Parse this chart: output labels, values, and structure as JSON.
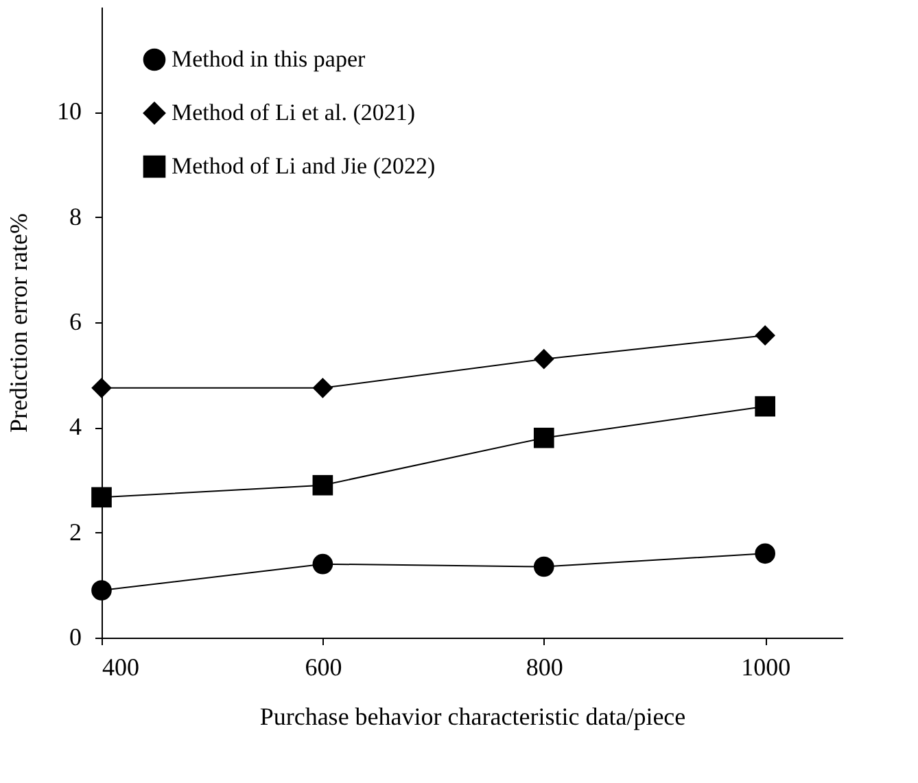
{
  "chart_data": {
    "type": "line",
    "xlabel": "Purchase behavior characteristic data/piece",
    "ylabel": "Prediction error rate%",
    "x": [
      400,
      600,
      800,
      1000
    ],
    "series": [
      {
        "name": "Method in this paper",
        "color": "#000000",
        "marker": "circle",
        "values": [
          0.9,
          1.4,
          1.35,
          1.6
        ]
      },
      {
        "name": "Method of Li et al. (2021)",
        "color": "#000000",
        "marker": "diamond",
        "values": [
          4.75,
          4.75,
          5.3,
          5.75
        ]
      },
      {
        "name": "Method of Li and Jie (2022)",
        "color": "#000000",
        "marker": "square",
        "values": [
          2.67,
          2.9,
          3.8,
          4.4
        ]
      }
    ],
    "xlim": [
      400,
      1070
    ],
    "ylim": [
      0,
      12
    ],
    "xticks": [
      400,
      600,
      800,
      1000
    ],
    "yticks": [
      0,
      2,
      4,
      6,
      8,
      10
    ],
    "grid": false,
    "legend": "top left",
    "line_style": "solid"
  }
}
